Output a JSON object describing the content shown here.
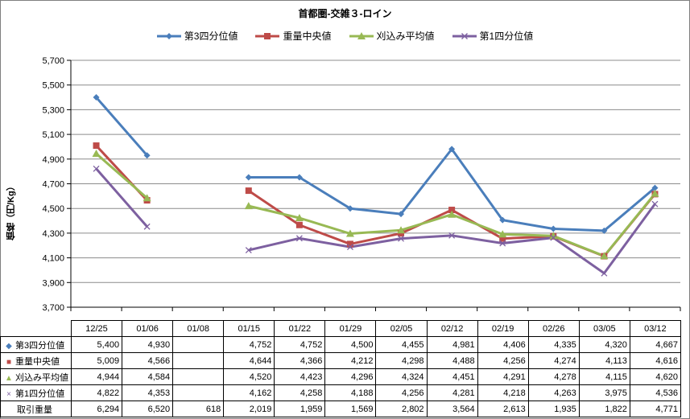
{
  "chart_data": {
    "type": "line",
    "title": "首都圏-交雑３-ロイン",
    "ylabel": "価格（円/Kg）",
    "ylim": [
      3700,
      5700
    ],
    "yticks": [
      3700,
      3900,
      4100,
      4300,
      4500,
      4700,
      4900,
      5100,
      5300,
      5500,
      5700
    ],
    "ytick_labels": [
      "3,700",
      "3,900",
      "4,100",
      "4,300",
      "4,500",
      "4,700",
      "4,900",
      "5,100",
      "5,300",
      "5,500",
      "5,700"
    ],
    "grid": true,
    "legend_position": "top",
    "categories": [
      "12/25",
      "01/06",
      "01/08",
      "01/15",
      "01/22",
      "01/29",
      "02/05",
      "02/12",
      "02/19",
      "02/26",
      "03/05",
      "03/12"
    ],
    "series": [
      {
        "name": "第3四分位値",
        "color": "#4a7ebb",
        "marker": "diamond",
        "values": [
          5400,
          4930,
          null,
          4752,
          4752,
          4500,
          4455,
          4981,
          4406,
          4335,
          4320,
          4667
        ],
        "labels": [
          "5,400",
          "4,930",
          "",
          "4,752",
          "4,752",
          "4,500",
          "4,455",
          "4,981",
          "4,406",
          "4,335",
          "4,320",
          "4,667"
        ]
      },
      {
        "name": "重量中央値",
        "color": "#be4b48",
        "marker": "square",
        "values": [
          5009,
          4566,
          null,
          4644,
          4366,
          4212,
          4298,
          4488,
          4256,
          4274,
          4113,
          4616
        ],
        "labels": [
          "5,009",
          "4,566",
          "",
          "4,644",
          "4,366",
          "4,212",
          "4,298",
          "4,488",
          "4,256",
          "4,274",
          "4,113",
          "4,616"
        ]
      },
      {
        "name": "刈込み平均値",
        "color": "#98b954",
        "marker": "triangle",
        "values": [
          4944,
          4584,
          null,
          4520,
          4423,
          4296,
          4324,
          4451,
          4291,
          4278,
          4115,
          4620
        ],
        "labels": [
          "4,944",
          "4,584",
          "",
          "4,520",
          "4,423",
          "4,296",
          "4,324",
          "4,451",
          "4,291",
          "4,278",
          "4,115",
          "4,620"
        ]
      },
      {
        "name": "第1四分位値",
        "color": "#7d60a0",
        "marker": "x",
        "values": [
          4822,
          4353,
          null,
          4162,
          4258,
          4188,
          4256,
          4281,
          4218,
          4263,
          3975,
          4536
        ],
        "labels": [
          "4,822",
          "4,353",
          "",
          "4,162",
          "4,258",
          "4,188",
          "4,256",
          "4,281",
          "4,218",
          "4,263",
          "3,975",
          "4,536"
        ]
      }
    ],
    "table_extra_row": {
      "name": "取引重量",
      "labels": [
        "6,294",
        "6,520",
        "618",
        "2,019",
        "1,959",
        "1,569",
        "2,802",
        "3,564",
        "2,613",
        "1,935",
        "1,822",
        "4,771"
      ]
    }
  }
}
